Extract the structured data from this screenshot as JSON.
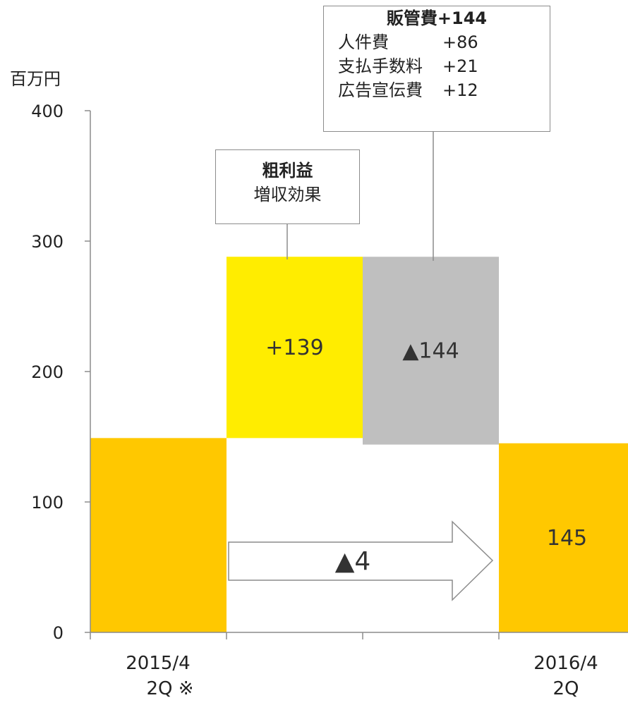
{
  "chart_data": {
    "type": "waterfall",
    "unit_label": "百万円",
    "ylim": [
      0,
      400
    ],
    "y_ticks": [
      0,
      100,
      200,
      300,
      400
    ],
    "grid": false,
    "bars": [
      {
        "category_line1": "2015/4",
        "category_line2": "2Q ※",
        "base": 0,
        "value": 149,
        "kind": "total",
        "label": "",
        "color": "#ffc800"
      },
      {
        "category_line1": "",
        "category_line2": "",
        "base": 149,
        "value": 139,
        "kind": "increase",
        "label": "+139",
        "color": "#ffed00"
      },
      {
        "category_line1": "",
        "category_line2": "",
        "base": 288,
        "value": -144,
        "kind": "decrease",
        "label": "▲144",
        "color": "#bfbfbf"
      },
      {
        "category_line1": "2016/4",
        "category_line2": "2Q",
        "base": 0,
        "value": 145,
        "kind": "total",
        "label": "145",
        "color": "#ffc800"
      }
    ],
    "change_arrow_label": "▲4",
    "callouts": {
      "gross_profit": {
        "title": "粗利益",
        "text": "増収効果"
      },
      "sga": {
        "title": "販管費+144",
        "items": [
          {
            "name": "人件費",
            "value": "+86"
          },
          {
            "name": "支払手数料",
            "value": "+21"
          },
          {
            "name": "広告宣伝費",
            "value": "+12"
          }
        ]
      }
    }
  }
}
